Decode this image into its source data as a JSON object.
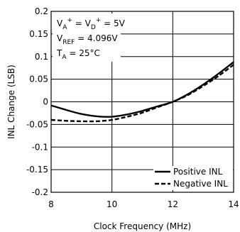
{
  "chart_data": {
    "type": "line",
    "title": "",
    "xlabel": "Clock Frequency (MHz)",
    "ylabel": "INL Change (LSB)",
    "xlim": [
      8,
      14
    ],
    "ylim": [
      -0.2,
      0.2
    ],
    "x_ticks": [
      8,
      10,
      12,
      14
    ],
    "y_ticks": [
      0.2,
      0.15,
      0.1,
      0.05,
      0,
      -0.05,
      -0.1,
      -0.15,
      -0.2
    ],
    "x_tick_labels": [
      "8",
      "10",
      "12",
      "14"
    ],
    "y_tick_labels": [
      "0.2",
      "0.15",
      "0.1",
      "0.05",
      "0",
      "-0.05",
      "-0.1",
      "-0.15",
      "-0.2"
    ],
    "grid": true,
    "legend_position": "bottom-right",
    "series": [
      {
        "name": "Positive INL",
        "style": "solid",
        "x": [
          8,
          8.5,
          9,
          9.5,
          10,
          10.5,
          11,
          11.5,
          12,
          12.5,
          13,
          13.5,
          14
        ],
        "y": [
          -0.008,
          -0.018,
          -0.027,
          -0.032,
          -0.033,
          -0.028,
          -0.02,
          -0.01,
          0.0,
          0.017,
          0.038,
          0.062,
          0.088
        ]
      },
      {
        "name": "Negative INL",
        "style": "dashed",
        "x": [
          8,
          8.5,
          9,
          9.5,
          10,
          10.5,
          11,
          11.5,
          12,
          12.5,
          13,
          13.5,
          14
        ],
        "y": [
          -0.04,
          -0.042,
          -0.043,
          -0.043,
          -0.04,
          -0.033,
          -0.024,
          -0.012,
          0.0,
          0.015,
          0.035,
          0.057,
          0.082
        ]
      }
    ],
    "conditions": {
      "line1": {
        "a": "V",
        "a_sup": "+",
        "a_sub": "A",
        "eq1": " = V",
        "b_sub": "D",
        "b_sup": "+",
        "eq2": " = 5V"
      },
      "line2": {
        "a": "V",
        "a_sub": "REF",
        "eq": " = 4.096V"
      },
      "line3": {
        "a": "T",
        "a_sub": "A",
        "eq": " = 25°C"
      }
    },
    "colors": {
      "line": "#000000",
      "grid": "#000000",
      "background": "#ffffff"
    }
  }
}
